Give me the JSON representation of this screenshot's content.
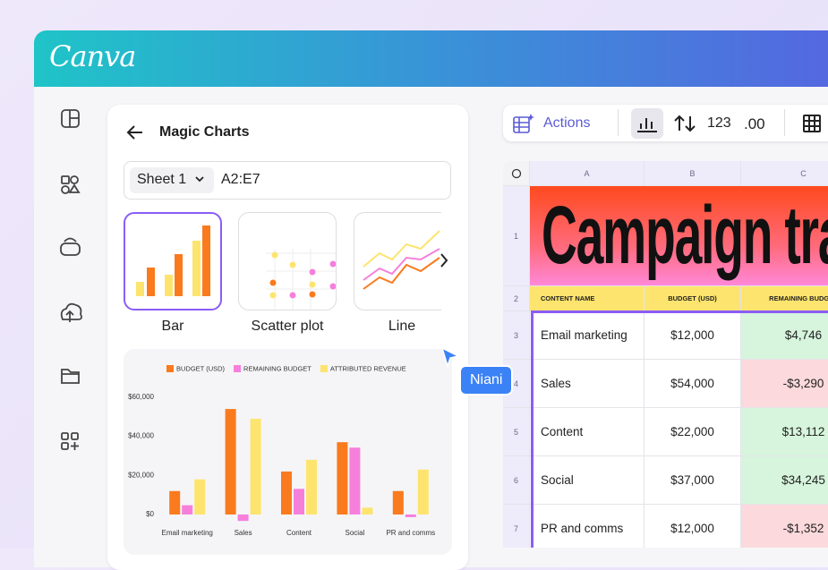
{
  "app": {
    "logo": "Canva"
  },
  "panel": {
    "title": "Magic Charts",
    "sheet": "Sheet 1",
    "range": "A2:E7",
    "chart_types": [
      "Bar",
      "Scatter plot",
      "Line"
    ]
  },
  "cursor": {
    "user": "Niani"
  },
  "toolbar": {
    "actions": "Actions",
    "number_format": "123",
    "decimals": ".00"
  },
  "sheet": {
    "columns": [
      "A",
      "B",
      "C"
    ],
    "row_numbers": [
      "1",
      "2",
      "3",
      "4",
      "5",
      "6",
      "7"
    ],
    "title": "Campaign tra",
    "headers": [
      "CONTENT NAME",
      "BUDGET (USD)",
      "REMAINING BUDGET"
    ],
    "rows": [
      [
        "Email marketing",
        "$12,000",
        "$4,746"
      ],
      [
        "Sales",
        "$54,000",
        "-$3,290"
      ],
      [
        "Content",
        "$22,000",
        "$13,112"
      ],
      [
        "Social",
        "$37,000",
        "$34,245"
      ],
      [
        "PR and comms",
        "$12,000",
        "-$1,352"
      ]
    ]
  },
  "chart_data": {
    "type": "bar",
    "categories": [
      "Email marketing",
      "Sales",
      "Content",
      "Social",
      "PR and comms"
    ],
    "series": [
      {
        "name": "BUDGET (USD)",
        "color": "#fa7a1e",
        "values": [
          12000,
          54000,
          22000,
          37000,
          12000
        ]
      },
      {
        "name": "REMAINING BUDGET",
        "color": "#f67fdc",
        "values": [
          4746,
          -3290,
          13112,
          34245,
          -1352
        ]
      },
      {
        "name": "ATTRIBUTED REVENUE",
        "color": "#fde46e",
        "values": [
          18000,
          49000,
          28000,
          3500,
          23000
        ]
      }
    ],
    "ylim": [
      -4000,
      62000
    ],
    "yticks": [
      {
        "value": 0,
        "label": "$0"
      },
      {
        "value": 20000,
        "label": "$20,000"
      },
      {
        "value": 40000,
        "label": "$40,000"
      },
      {
        "value": 60000,
        "label": "$60,000"
      }
    ],
    "grid": false,
    "legend": "top"
  }
}
